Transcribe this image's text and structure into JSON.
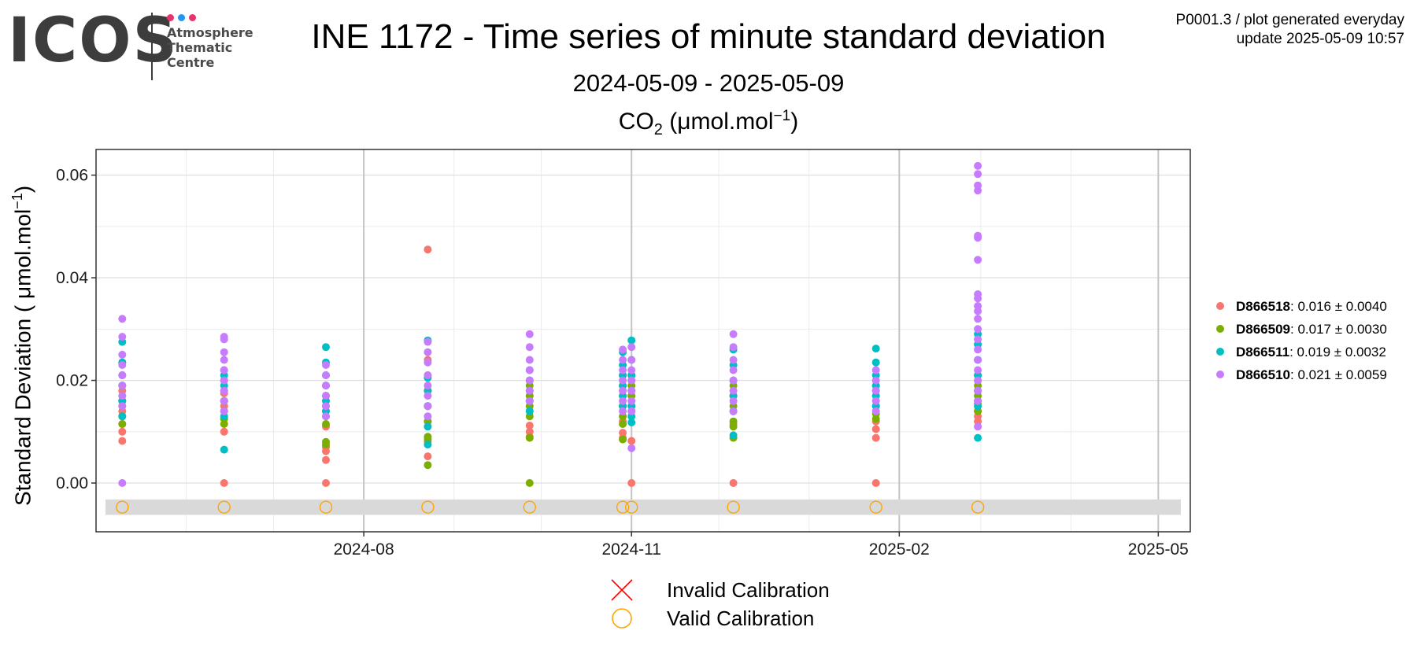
{
  "header": {
    "logo": {
      "wordmark": "ICOS",
      "line1": "Atmosphere",
      "line2": "Thematic",
      "line3": "Centre",
      "dot_colors": [
        "#e6336b",
        "#2196f3",
        "#e6336b"
      ]
    },
    "title": "INE 1172 - Time series of minute standard deviation",
    "subtitle": "2024-05-09 - 2025-05-09",
    "meta_line1": "P0001.3 / plot generated everyday",
    "meta_line2": "update  2025-05-09 10:57"
  },
  "chart_data": {
    "type": "scatter",
    "title_main": "CO",
    "title_sub": "2",
    "title_unit_pre": " (μmol.mol",
    "title_unit_sup": "−1",
    "title_unit_post": ")",
    "ylabel_pre": "Standard Deviation ( μmol.mol",
    "ylabel_sup": "−1",
    "ylabel_post": ")",
    "xlim": [
      "2024-05-01",
      "2025-05-12"
    ],
    "ylim": [
      -0.0095,
      0.065
    ],
    "x_ticks": [
      {
        "date": "2024-08-01",
        "label": "2024-08"
      },
      {
        "date": "2024-11-01",
        "label": "2024-11"
      },
      {
        "date": "2025-02-01",
        "label": "2025-02"
      },
      {
        "date": "2025-05-01",
        "label": "2025-05"
      }
    ],
    "y_ticks": [
      {
        "value": 0.0,
        "label": "0.00"
      },
      {
        "value": 0.02,
        "label": "0.02"
      },
      {
        "value": 0.04,
        "label": "0.04"
      },
      {
        "value": 0.06,
        "label": "0.06"
      }
    ],
    "grid": true,
    "legend_position": "right",
    "series": [
      {
        "name": "D866518",
        "stats": ": 0.016 ± 0.0040",
        "color": "#f8766d",
        "points": [
          {
            "date": "2024-05-10",
            "values": [
              0.0082,
              0.01,
              0.0115,
              0.014,
              0.016,
              0.018
            ]
          },
          {
            "date": "2024-06-14",
            "values": [
              0.0,
              0.01,
              0.0125,
              0.015,
              0.0175,
              0.02
            ]
          },
          {
            "date": "2024-07-19",
            "values": [
              0.0,
              0.0045,
              0.0062,
              0.007,
              0.011,
              0.014,
              0.017
            ]
          },
          {
            "date": "2024-08-23",
            "values": [
              0.0455,
              0.0052,
              0.008,
              0.012,
              0.015,
              0.018,
              0.024
            ]
          },
          {
            "date": "2024-09-27",
            "values": [
              0.009,
              0.01,
              0.0112,
              0.014,
              0.017,
              0.02
            ]
          },
          {
            "date": "2024-10-29",
            "values": [
              0.0088,
              0.0098,
              0.012,
              0.015,
              0.018,
              0.021
            ]
          },
          {
            "date": "2024-11-01",
            "values": [
              0.0,
              0.0082,
              0.014,
              0.017,
              0.02
            ]
          },
          {
            "date": "2024-12-06",
            "values": [
              0.0,
              0.0115,
              0.014,
              0.017,
              0.02
            ]
          },
          {
            "date": "2025-01-24",
            "values": [
              0.0,
              0.0088,
              0.0105,
              0.012,
              0.015,
              0.018
            ]
          },
          {
            "date": "2025-02-28",
            "values": [
              0.012,
              0.013,
              0.014,
              0.016,
              0.018,
              0.02
            ]
          }
        ]
      },
      {
        "name": "D866509",
        "stats": ": 0.017 ± 0.0030",
        "color": "#7cae00",
        "points": [
          {
            "date": "2024-05-10",
            "values": [
              0.0115,
              0.013,
              0.015,
              0.017,
              0.019,
              0.021,
              0.0235
            ]
          },
          {
            "date": "2024-06-14",
            "values": [
              0.0115,
              0.0125,
              0.014,
              0.016,
              0.018,
              0.02,
              0.022
            ]
          },
          {
            "date": "2024-07-19",
            "values": [
              0.008,
              0.0075,
              0.0115,
              0.013,
              0.015,
              0.017,
              0.019
            ]
          },
          {
            "date": "2024-08-23",
            "values": [
              0.0035,
              0.0085,
              0.009,
              0.012,
              0.015,
              0.018,
              0.021
            ]
          },
          {
            "date": "2024-09-27",
            "values": [
              0.0,
              0.0088,
              0.013,
              0.015,
              0.017,
              0.019
            ]
          },
          {
            "date": "2024-10-29",
            "values": [
              0.0085,
              0.0115,
              0.013,
              0.015,
              0.017,
              0.019
            ]
          },
          {
            "date": "2024-11-01",
            "values": [
              0.015,
              0.017,
              0.019,
              0.021
            ]
          },
          {
            "date": "2024-12-06",
            "values": [
              0.0088,
              0.011,
              0.012,
              0.015,
              0.017,
              0.019
            ]
          },
          {
            "date": "2025-01-24",
            "values": [
              0.0125,
              0.0135,
              0.015,
              0.017,
              0.019
            ]
          },
          {
            "date": "2025-02-28",
            "values": [
              0.014,
              0.0155,
              0.017,
              0.019,
              0.021
            ]
          }
        ]
      },
      {
        "name": "D866511",
        "stats": ": 0.019 ± 0.0032",
        "color": "#00bfc4",
        "points": [
          {
            "date": "2024-05-10",
            "values": [
              0.013,
              0.016,
              0.019,
              0.021,
              0.0235,
              0.0275
            ]
          },
          {
            "date": "2024-06-14",
            "values": [
              0.0065,
              0.013,
              0.016,
              0.019,
              0.021
            ]
          },
          {
            "date": "2024-07-19",
            "values": [
              0.014,
              0.016,
              0.019,
              0.021,
              0.0235,
              0.0265
            ]
          },
          {
            "date": "2024-08-23",
            "values": [
              0.0075,
              0.011,
              0.015,
              0.018,
              0.0205,
              0.0278
            ]
          },
          {
            "date": "2024-09-27",
            "values": [
              0.014,
              0.016,
              0.018,
              0.02,
              0.022
            ]
          },
          {
            "date": "2024-10-29",
            "values": [
              0.015,
              0.017,
              0.019,
              0.021,
              0.023,
              0.0255
            ]
          },
          {
            "date": "2024-11-01",
            "values": [
              0.0118,
              0.013,
              0.015,
              0.018,
              0.021,
              0.024,
              0.0278
            ]
          },
          {
            "date": "2024-12-06",
            "values": [
              0.0093,
              0.014,
              0.017,
              0.02,
              0.023,
              0.026
            ]
          },
          {
            "date": "2025-01-24",
            "values": [
              0.015,
              0.017,
              0.019,
              0.021,
              0.0235,
              0.0262
            ]
          },
          {
            "date": "2025-02-28",
            "values": [
              0.0088,
              0.015,
              0.018,
              0.021,
              0.024,
              0.027,
              0.029
            ]
          }
        ]
      },
      {
        "name": "D866510",
        "stats": ": 0.021 ± 0.0059",
        "color": "#c77cff",
        "points": [
          {
            "date": "2024-05-10",
            "values": [
              0.0,
              0.015,
              0.017,
              0.019,
              0.021,
              0.023,
              0.025,
              0.0285,
              0.032
            ]
          },
          {
            "date": "2024-06-14",
            "values": [
              0.014,
              0.016,
              0.018,
              0.02,
              0.022,
              0.024,
              0.0255,
              0.028,
              0.0285
            ]
          },
          {
            "date": "2024-07-19",
            "values": [
              0.013,
              0.015,
              0.017,
              0.019,
              0.021,
              0.023
            ]
          },
          {
            "date": "2024-08-23",
            "values": [
              0.013,
              0.015,
              0.017,
              0.019,
              0.021,
              0.0235,
              0.0255,
              0.0275
            ]
          },
          {
            "date": "2024-09-27",
            "values": [
              0.016,
              0.018,
              0.02,
              0.022,
              0.024,
              0.0265,
              0.029
            ]
          },
          {
            "date": "2024-10-29",
            "values": [
              0.014,
              0.016,
              0.018,
              0.02,
              0.022,
              0.024,
              0.026
            ]
          },
          {
            "date": "2024-11-01",
            "values": [
              0.0068,
              0.014,
              0.016,
              0.018,
              0.02,
              0.022,
              0.024,
              0.0265
            ]
          },
          {
            "date": "2024-12-06",
            "values": [
              0.014,
              0.016,
              0.018,
              0.02,
              0.022,
              0.024,
              0.0265,
              0.029
            ]
          },
          {
            "date": "2025-01-24",
            "values": [
              0.014,
              0.016,
              0.018,
              0.02,
              0.022
            ]
          },
          {
            "date": "2025-02-28",
            "values": [
              0.011,
              0.016,
              0.018,
              0.02,
              0.022,
              0.024,
              0.026,
              0.028,
              0.03,
              0.032,
              0.0335,
              0.0345,
              0.036,
              0.0368,
              0.0435,
              0.0478,
              0.0482,
              0.057,
              0.058,
              0.0602,
              0.0618
            ]
          }
        ]
      }
    ],
    "calibrations": {
      "y_value": -0.0047,
      "band": [
        -0.0062,
        -0.0032
      ],
      "band_color": "#d9d9d9",
      "valid_color": "#ffa500",
      "invalid_color": "#ff0000",
      "valid_dates": [
        "2024-05-10",
        "2024-06-14",
        "2024-07-19",
        "2024-08-23",
        "2024-09-27",
        "2024-10-29",
        "2024-11-01",
        "2024-12-06",
        "2025-01-24",
        "2025-02-28"
      ],
      "invalid_dates": []
    },
    "calibration_legend": {
      "invalid_label": "Invalid Calibration",
      "valid_label": "Valid Calibration"
    }
  }
}
